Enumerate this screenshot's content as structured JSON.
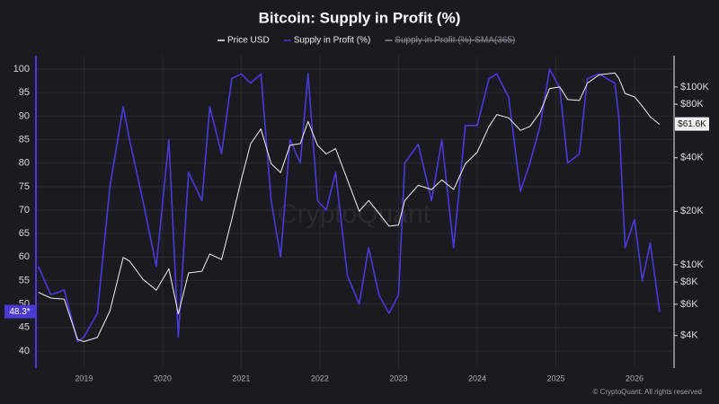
{
  "chart_data": {
    "type": "line",
    "title": "Bitcoin: Supply in Profit (%)",
    "watermark": "CryptoQuant",
    "footer": "© CryptoQuant. All rights reserved",
    "x": [
      2018.42,
      2018.58,
      2018.75,
      2018.92,
      2019.0,
      2019.17,
      2019.33,
      2019.5,
      2019.58,
      2019.75,
      2019.92,
      2020.08,
      2020.2,
      2020.33,
      2020.5,
      2020.6,
      2020.75,
      2020.88,
      2021.0,
      2021.12,
      2021.25,
      2021.38,
      2021.5,
      2021.62,
      2021.75,
      2021.85,
      2021.97,
      2022.08,
      2022.2,
      2022.35,
      2022.5,
      2022.62,
      2022.75,
      2022.88,
      2023.0,
      2023.08,
      2023.25,
      2023.42,
      2023.55,
      2023.7,
      2023.85,
      2024.0,
      2024.15,
      2024.25,
      2024.4,
      2024.55,
      2024.67,
      2024.8,
      2024.92,
      2025.05,
      2025.15,
      2025.3,
      2025.4,
      2025.55,
      2025.75,
      2025.8,
      2025.88,
      2026.0,
      2026.1,
      2026.2,
      2026.32
    ],
    "series": [
      {
        "name": "Price USD",
        "color": "#f2f2f2",
        "axis": "y2",
        "values": [
          7000,
          6500,
          6400,
          3800,
          3700,
          3900,
          5500,
          11000,
          10500,
          8300,
          7200,
          9500,
          5300,
          9000,
          9200,
          11500,
          10700,
          18000,
          30000,
          48000,
          58000,
          37000,
          33000,
          47000,
          48000,
          64000,
          47000,
          42000,
          45000,
          30000,
          20000,
          23000,
          19500,
          16500,
          16700,
          23000,
          28000,
          26500,
          30000,
          26500,
          37000,
          43000,
          60000,
          70000,
          67000,
          57000,
          60000,
          72000,
          98000,
          100000,
          85000,
          84000,
          105000,
          117000,
          120000,
          112000,
          92000,
          88000,
          78000,
          68000,
          61600
        ]
      },
      {
        "name": "Supply in Profit (%)",
        "color": "#4b3ad4",
        "values": [
          58,
          52,
          53,
          42,
          43,
          48,
          75,
          92,
          85,
          72,
          58,
          85,
          43,
          78,
          72,
          92,
          82,
          98,
          99,
          97,
          99,
          72,
          60,
          85,
          80,
          99,
          72,
          70,
          78,
          56,
          50,
          62,
          52,
          48,
          52,
          80,
          84,
          72,
          85,
          62,
          88,
          88,
          98,
          99,
          94,
          74,
          80,
          88,
          100,
          96,
          80,
          82,
          98,
          99,
          97,
          90,
          62,
          68,
          55,
          63,
          48.3
        ]
      }
    ],
    "hidden_series": [
      {
        "name": "Supply in Profit (%)-SMA(365)",
        "color": "#8a8a93"
      }
    ],
    "xlim": [
      2018.39,
      2026.48
    ],
    "xticks": [
      {
        "value": 2019.0,
        "label": "2019"
      },
      {
        "value": 2020.0,
        "label": "2020"
      },
      {
        "value": 2021.0,
        "label": "2021"
      },
      {
        "value": 2022.0,
        "label": "2022"
      },
      {
        "value": 2023.0,
        "label": "2023"
      },
      {
        "value": 2024.0,
        "label": "2024"
      },
      {
        "value": 2025.0,
        "label": "2025"
      },
      {
        "value": 2026.0,
        "label": "2026"
      }
    ],
    "ylim": [
      36.37,
      102.87
    ],
    "yticks": [
      40,
      45,
      50,
      55,
      60,
      65,
      70,
      75,
      80,
      85,
      90,
      95,
      100
    ],
    "y2lim": [
      2625,
      150000
    ],
    "y2_log": true,
    "y2ticks": [
      {
        "value": 4000,
        "label": "$4K"
      },
      {
        "value": 6000,
        "label": "$6K"
      },
      {
        "value": 8000,
        "label": "$8K"
      },
      {
        "value": 10000,
        "label": "$10K"
      },
      {
        "value": 20000,
        "label": "$20K"
      },
      {
        "value": 40000,
        "label": "$40K"
      },
      {
        "value": 80000,
        "label": "$80K"
      },
      {
        "value": 100000,
        "label": "$100K"
      }
    ],
    "annotations": [
      {
        "text": "48.3*",
        "axis": "y",
        "value": 48.3,
        "color": "#4b3ad4"
      },
      {
        "text": "$61.6K",
        "axis": "y2",
        "value": 61600,
        "color": "#f2f2f2"
      }
    ],
    "grid": true
  }
}
